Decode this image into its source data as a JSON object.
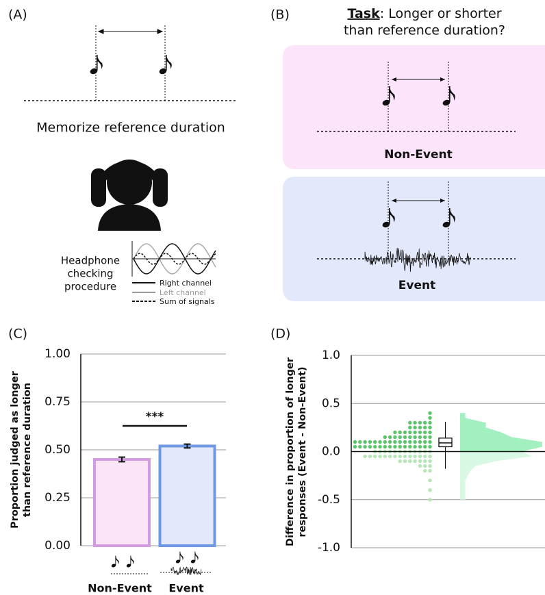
{
  "panel_labels": [
    "(A)",
    "(B)",
    "(C)",
    "(D)"
  ],
  "panel_a": {
    "caption": "Memorize reference duration",
    "procedure_label": [
      "Headphone",
      "checking",
      "procedure"
    ],
    "legend": [
      "Right channel",
      "Left channel",
      "Sum of signals"
    ]
  },
  "panel_b": {
    "task_keyword": "Task",
    "task_line1": ": Longer or shorter",
    "task_line2": "than reference duration?",
    "conditions": [
      "Non-Event",
      "Event"
    ]
  },
  "chart_data": [
    {
      "type": "bar",
      "ylabel": [
        "Proportion judged as longer",
        "than reference duration"
      ],
      "categories": [
        "Non-Event",
        "Event"
      ],
      "values": [
        0.45,
        0.52
      ],
      "errors": [
        0.012,
        0.01
      ],
      "fills": [
        "#fce4f7",
        "#e4e8fb"
      ],
      "edge_colors": [
        "#d39be0",
        "#6e98e2"
      ],
      "ylim": [
        0,
        1
      ],
      "yticks": [
        {
          "value": 0,
          "label": "0.00"
        },
        {
          "value": 0.25,
          "label": "0.25"
        },
        {
          "value": 0.5,
          "label": "0.50"
        },
        {
          "value": 0.75,
          "label": "0.75"
        },
        {
          "value": 1,
          "label": "1.00"
        }
      ],
      "grid": true,
      "annotation": "***"
    },
    {
      "type": "raincloud",
      "ylabel": [
        "Difference in proportion of longer",
        "responses (Event - Non-Event)"
      ],
      "ylim": [
        -1,
        1
      ],
      "yticks": [
        {
          "value": 1,
          "label": "1.0"
        },
        {
          "value": 0.5,
          "label": "0.5"
        },
        {
          "value": 0,
          "label": "0.0"
        },
        {
          "value": -0.5,
          "label": "-0.5"
        },
        {
          "value": -1,
          "label": "-1.0"
        }
      ],
      "grid": true,
      "dot_levels": [
        0.4,
        0.35,
        0.3,
        0.25,
        0.2,
        0.15,
        0.1,
        0.05,
        0,
        -0.05,
        -0.1,
        -0.15,
        -0.2,
        -0.3,
        -0.4,
        -0.5
      ],
      "dot_counts": [
        1,
        1,
        5,
        5,
        8,
        10,
        16,
        16,
        12,
        14,
        7,
        3,
        2,
        1,
        1,
        1
      ],
      "box": {
        "median": 0.09,
        "q1": 0.05,
        "q3": 0.14,
        "whisker_low": -0.18,
        "whisker_high": 0.31
      },
      "colors": {
        "above": "#5cc46a",
        "below": "#b6e6b6",
        "density_above": "#a2f0bf",
        "density_below": "#d9f8e4"
      }
    }
  ]
}
